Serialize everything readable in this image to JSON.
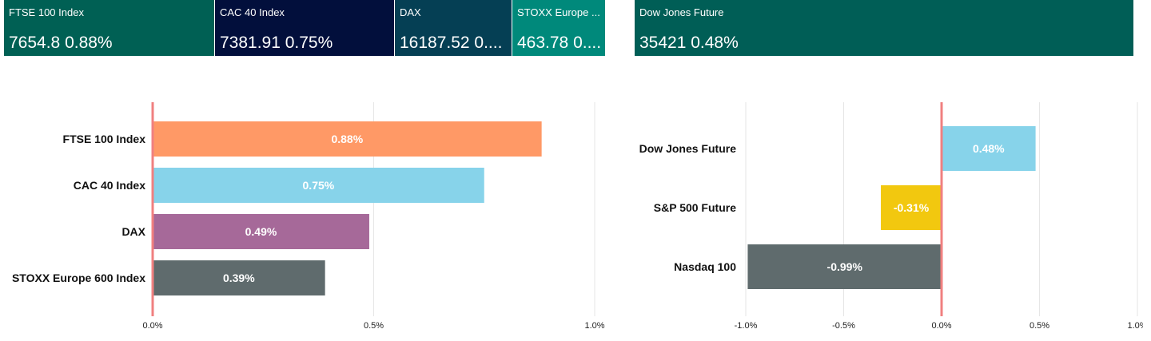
{
  "tiles": [
    {
      "name": "FTSE 100 Index",
      "value": "7654.8 0.88%",
      "color": "#006054"
    },
    {
      "name": "CAC 40 Index",
      "value": "7381.91 0.75%",
      "color": "#020F3C"
    },
    {
      "name": "DAX",
      "value": "16187.52 0....",
      "color": "#053F54"
    },
    {
      "name": "STOXX Europe ...",
      "value": "463.78 0....",
      "color": "#00897B"
    },
    {
      "name": "Dow Jones Future",
      "value": "35421 0.48%",
      "color": "#005E56"
    }
  ],
  "chart_data": [
    {
      "type": "bar",
      "orientation": "horizontal",
      "categories": [
        "FTSE 100 Index",
        "CAC 40 Index",
        "DAX",
        "STOXX Europe 600 Index"
      ],
      "values": [
        0.88,
        0.75,
        0.49,
        0.39
      ],
      "data_labels": [
        "0.88%",
        "0.75%",
        "0.49%",
        "0.39%"
      ],
      "colors": [
        "#FF9966",
        "#87D3EA",
        "#A66999",
        "#5F6B6D"
      ],
      "xlim": [
        0,
        1.0
      ],
      "xticks": [
        0,
        0.5,
        1.0
      ],
      "xtick_labels": [
        "0.0%",
        "0.5%",
        "1.0%"
      ],
      "zero_line_color": "#F08080",
      "grid": true
    },
    {
      "type": "bar",
      "orientation": "horizontal",
      "categories": [
        "Dow Jones Future",
        "S&P 500 Future",
        "Nasdaq 100"
      ],
      "values": [
        0.48,
        -0.31,
        -0.99
      ],
      "data_labels": [
        "0.48%",
        "-0.31%",
        "-0.99%"
      ],
      "colors": [
        "#87D3EA",
        "#F2C80F",
        "#5F6B6D"
      ],
      "xlim": [
        -1.0,
        1.0
      ],
      "xticks": [
        -1.0,
        -0.5,
        0,
        0.5,
        1.0
      ],
      "xtick_labels": [
        "-1.0%",
        "-0.5%",
        "0.0%",
        "0.5%",
        "1.0%"
      ],
      "zero_line_color": "#F08080",
      "grid": true
    }
  ]
}
